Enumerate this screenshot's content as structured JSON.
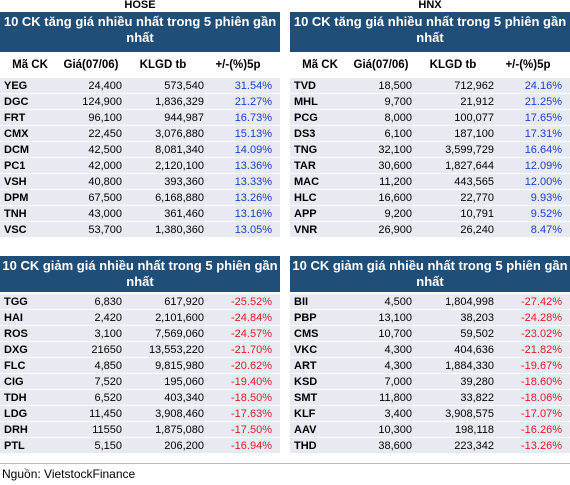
{
  "exchanges": {
    "left": "HOSE",
    "right": "HNX"
  },
  "columns": {
    "symbol": "Mã CK",
    "price": "Giá(07/06)",
    "volume": "KLGD tb",
    "change": "+/-(%)5p"
  },
  "hose_up": {
    "title": "10 CK tăng giá nhiều nhất trong 5 phiên gần nhất",
    "rows": [
      {
        "symbol": "YEG",
        "price": "24,400",
        "volume": "573,540",
        "change": "31.54%"
      },
      {
        "symbol": "DGC",
        "price": "124,900",
        "volume": "1,836,329",
        "change": "21.27%"
      },
      {
        "symbol": "FRT",
        "price": "96,100",
        "volume": "944,987",
        "change": "16.73%"
      },
      {
        "symbol": "CMX",
        "price": "22,450",
        "volume": "3,076,880",
        "change": "15.13%"
      },
      {
        "symbol": "DCM",
        "price": "42,500",
        "volume": "8,081,340",
        "change": "14.09%"
      },
      {
        "symbol": "PC1",
        "price": "42,000",
        "volume": "2,120,100",
        "change": "13.36%"
      },
      {
        "symbol": "VSH",
        "price": "40,800",
        "volume": "393,360",
        "change": "13.33%"
      },
      {
        "symbol": "DPM",
        "price": "67,500",
        "volume": "6,168,880",
        "change": "13.26%"
      },
      {
        "symbol": "TNH",
        "price": "43,000",
        "volume": "361,460",
        "change": "13.16%"
      },
      {
        "symbol": "VSC",
        "price": "53,700",
        "volume": "1,380,360",
        "change": "13.05%"
      }
    ]
  },
  "hnx_up": {
    "title": "10 CK tăng giá nhiều nhất trong 5 phiên gần nhất",
    "rows": [
      {
        "symbol": "TVD",
        "price": "18,500",
        "volume": "712,962",
        "change": "24.16%"
      },
      {
        "symbol": "MHL",
        "price": "9,700",
        "volume": "21,912",
        "change": "21.25%"
      },
      {
        "symbol": "PCG",
        "price": "8,000",
        "volume": "100,077",
        "change": "17.65%"
      },
      {
        "symbol": "DS3",
        "price": "6,100",
        "volume": "187,100",
        "change": "17.31%"
      },
      {
        "symbol": "TNG",
        "price": "32,100",
        "volume": "3,599,729",
        "change": "16.64%"
      },
      {
        "symbol": "TAR",
        "price": "30,600",
        "volume": "1,827,644",
        "change": "12.09%"
      },
      {
        "symbol": "MAC",
        "price": "11,200",
        "volume": "443,565",
        "change": "12.00%"
      },
      {
        "symbol": "HLC",
        "price": "16,600",
        "volume": "22,770",
        "change": "9.93%"
      },
      {
        "symbol": "APP",
        "price": "9,200",
        "volume": "10,791",
        "change": "9.52%"
      },
      {
        "symbol": "VNR",
        "price": "26,900",
        "volume": "26,240",
        "change": "8.47%"
      }
    ]
  },
  "hose_down": {
    "title": "10 CK giảm giá nhiều nhất trong 5 phiên gần nhất",
    "rows": [
      {
        "symbol": "TGG",
        "price": "6,830",
        "volume": "617,920",
        "change": "-25.52%"
      },
      {
        "symbol": "HAI",
        "price": "2,420",
        "volume": "2,101,600",
        "change": "-24.84%"
      },
      {
        "symbol": "ROS",
        "price": "3,100",
        "volume": "7,569,060",
        "change": "-24.57%"
      },
      {
        "symbol": "DXG",
        "price": "21650",
        "volume": "13,553,220",
        "change": "-21.70%"
      },
      {
        "symbol": "FLC",
        "price": "4,850",
        "volume": "9,815,980",
        "change": "-20.62%"
      },
      {
        "symbol": "CIG",
        "price": "7,520",
        "volume": "195,060",
        "change": "-19.40%"
      },
      {
        "symbol": "TDH",
        "price": "6,520",
        "volume": "403,340",
        "change": "-18.50%"
      },
      {
        "symbol": "LDG",
        "price": "11,450",
        "volume": "3,908,460",
        "change": "-17.63%"
      },
      {
        "symbol": "DRH",
        "price": "11550",
        "volume": "1,875,080",
        "change": "-17.50%"
      },
      {
        "symbol": "PTL",
        "price": "5,150",
        "volume": "206,200",
        "change": "-16.94%"
      }
    ]
  },
  "hnx_down": {
    "title": "10 CK giảm giá nhiều nhất trong 5 phiên gần nhất",
    "rows": [
      {
        "symbol": "BII",
        "price": "4,500",
        "volume": "1,804,998",
        "change": "-27.42%"
      },
      {
        "symbol": "PBP",
        "price": "13,100",
        "volume": "38,203",
        "change": "-24.28%"
      },
      {
        "symbol": "CMS",
        "price": "10,700",
        "volume": "59,502",
        "change": "-23.02%"
      },
      {
        "symbol": "VKC",
        "price": "4,300",
        "volume": "404,636",
        "change": "-21.82%"
      },
      {
        "symbol": "ART",
        "price": "4,300",
        "volume": "1,884,330",
        "change": "-19.67%"
      },
      {
        "symbol": "KSD",
        "price": "7,000",
        "volume": "39,280",
        "change": "-18.60%"
      },
      {
        "symbol": "SMT",
        "price": "11,800",
        "volume": "33,822",
        "change": "-18.06%"
      },
      {
        "symbol": "KLF",
        "price": "3,400",
        "volume": "3,908,575",
        "change": "-17.07%"
      },
      {
        "symbol": "AAV",
        "price": "10,300",
        "volume": "198,118",
        "change": "-16.26%"
      },
      {
        "symbol": "THD",
        "price": "38,600",
        "volume": "223,342",
        "change": "-13.26%"
      }
    ]
  },
  "source": "Nguồn: VietstockFinance",
  "colors": {
    "header_bg": "#1f4e79",
    "row_bg": "#e7eaf0",
    "up": "#1a3fd6",
    "down": "#e0202a"
  }
}
